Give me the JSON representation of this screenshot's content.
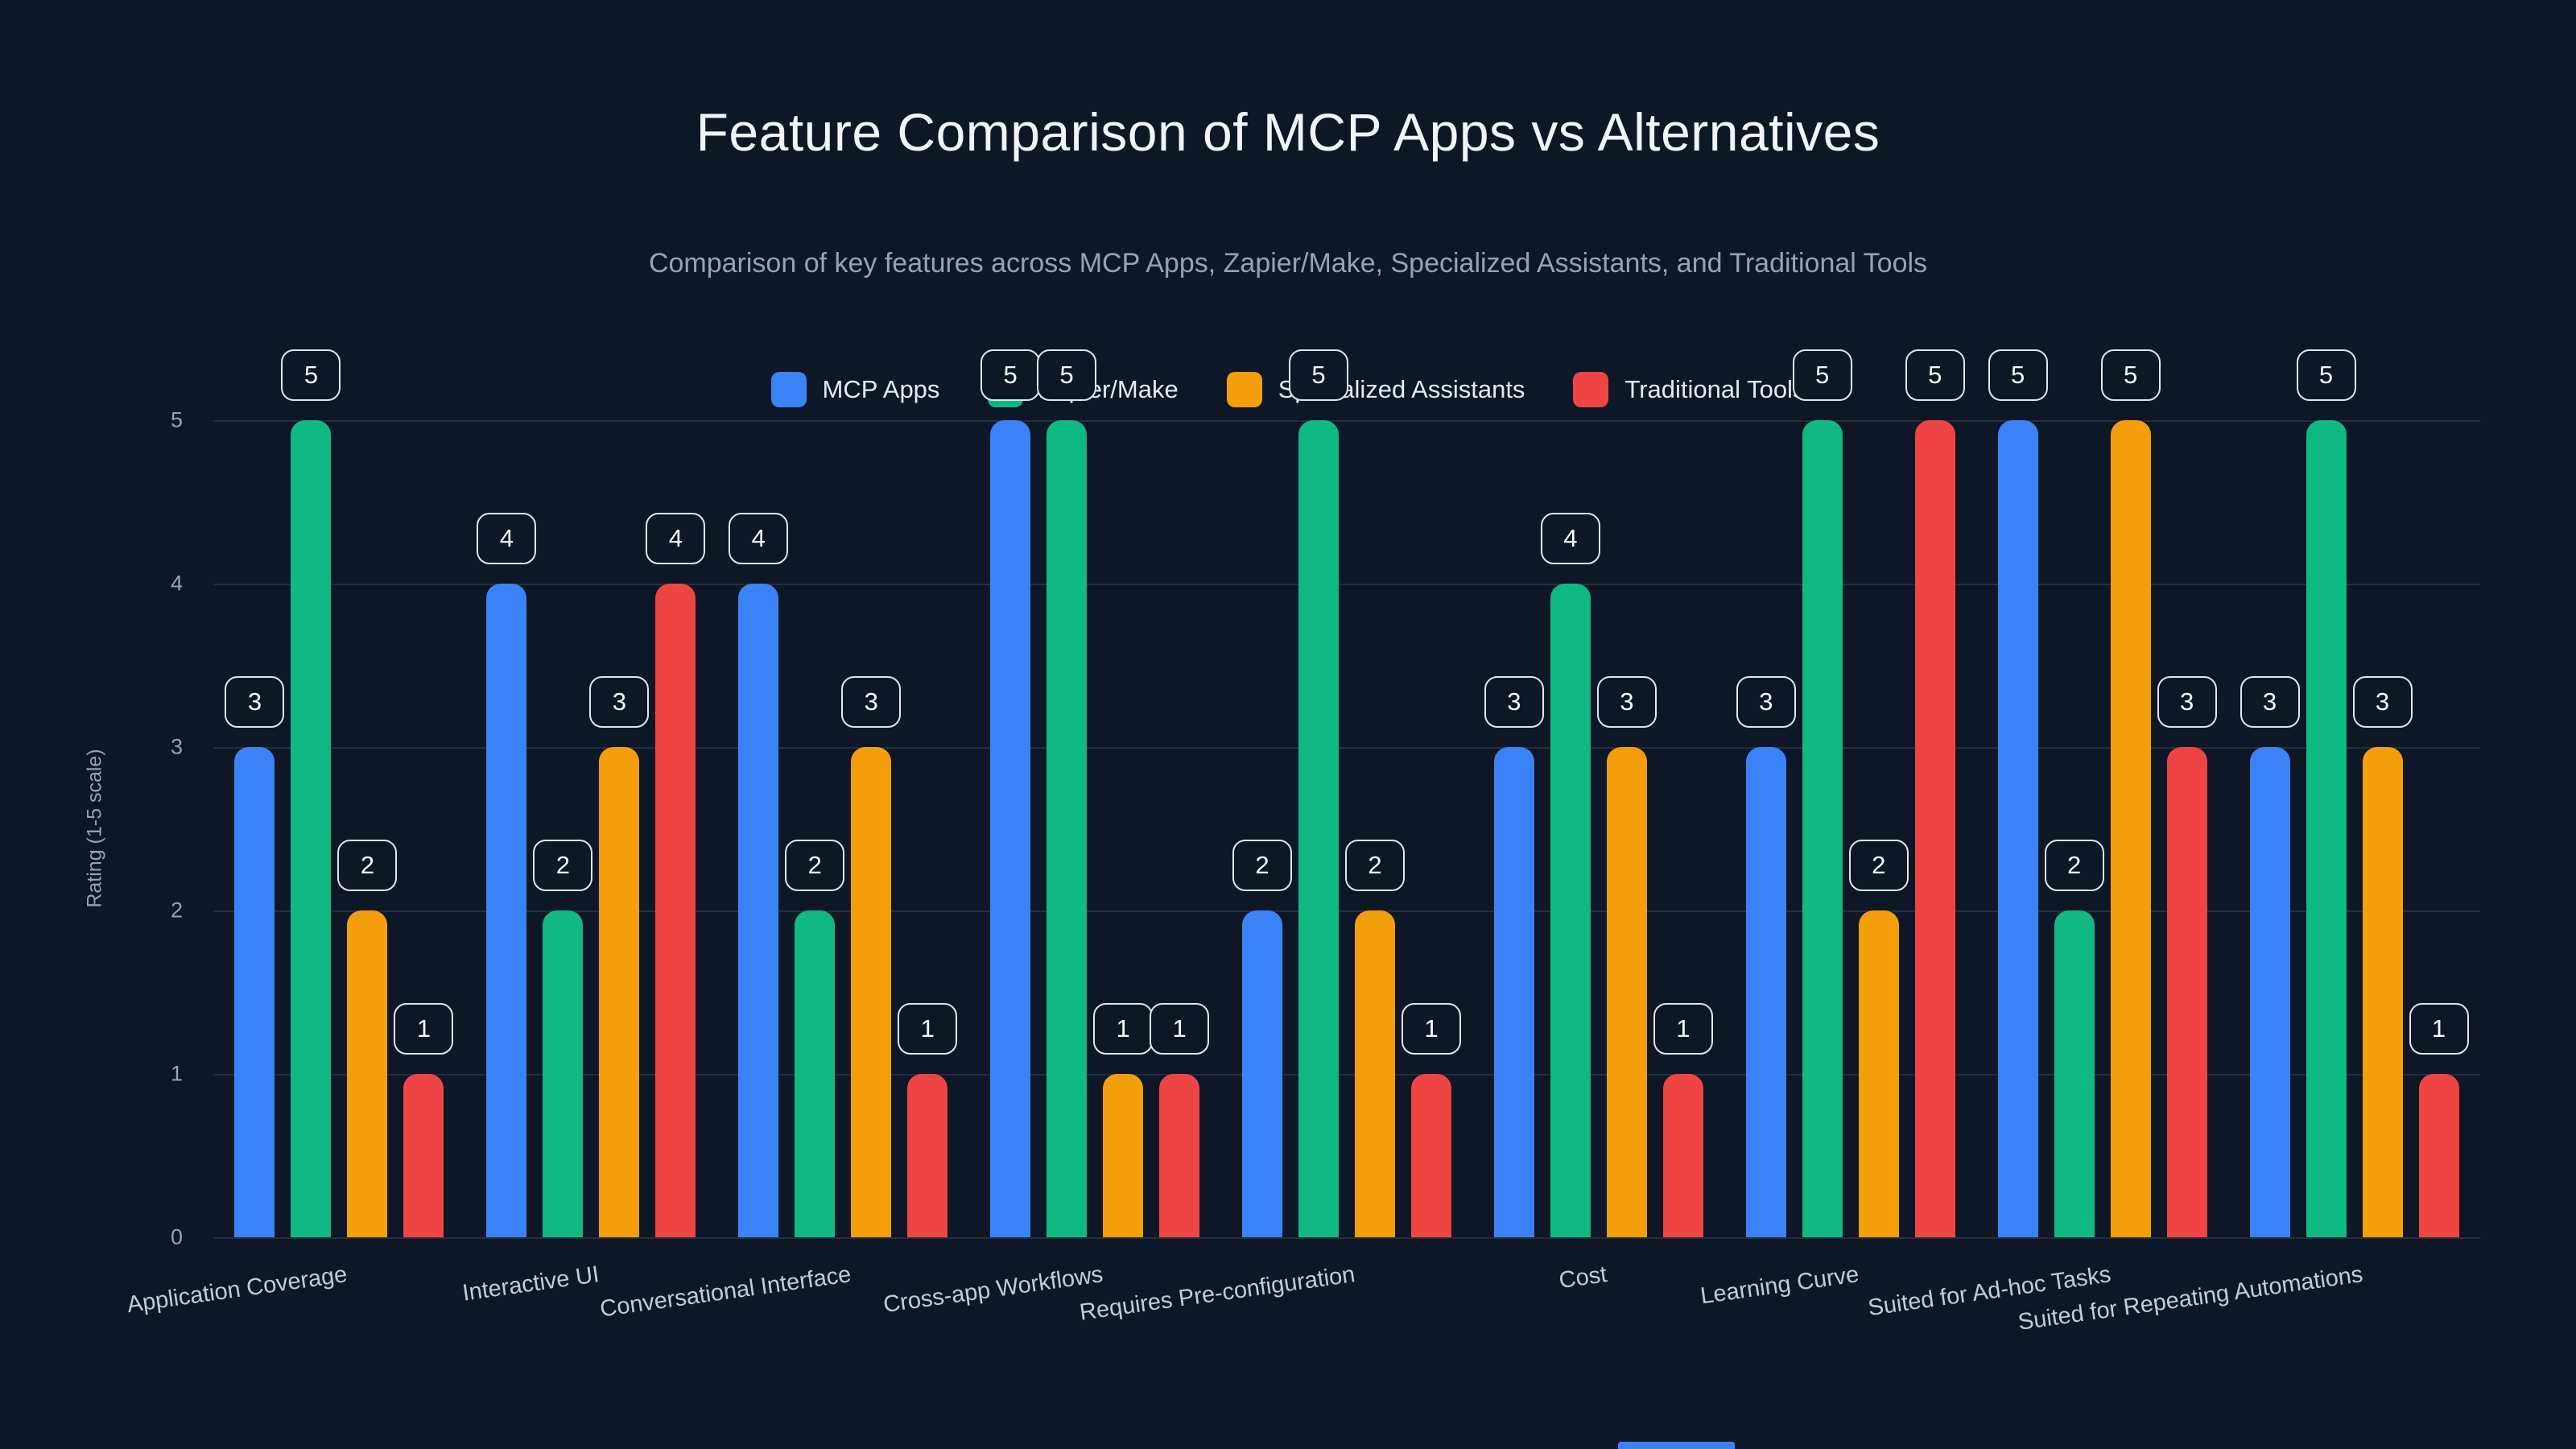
{
  "chart_data": {
    "type": "bar",
    "title": "Feature Comparison of MCP Apps vs Alternatives",
    "subtitle": "Comparison of key features across MCP Apps, Zapier/Make, Specialized Assistants, and Traditional Tools",
    "xlabel": "",
    "ylabel": "Rating (1-5 scale)",
    "ylim": [
      0,
      5
    ],
    "yticks": [
      0,
      1,
      2,
      3,
      4,
      5
    ],
    "grid": true,
    "legend_position": "top",
    "value_labels": true,
    "categories": [
      "Application Coverage",
      "Interactive UI",
      "Conversational Interface",
      "Cross-app Workflows",
      "Requires Pre-configuration",
      "Cost",
      "Learning Curve",
      "Suited for Ad-hoc Tasks",
      "Suited for Repeating Automations"
    ],
    "series": [
      {
        "name": "MCP Apps",
        "color": "#3b82f6",
        "values": [
          3,
          4,
          4,
          5,
          2,
          3,
          3,
          5,
          3
        ]
      },
      {
        "name": "Zapier/Make",
        "color": "#10b981",
        "values": [
          5,
          2,
          2,
          5,
          5,
          4,
          5,
          2,
          5
        ]
      },
      {
        "name": "Specialized Assistants",
        "color": "#f59e0b",
        "values": [
          2,
          3,
          3,
          1,
          2,
          3,
          2,
          5,
          3
        ]
      },
      {
        "name": "Traditional Tools",
        "color": "#ef4444",
        "values": [
          1,
          4,
          1,
          1,
          1,
          1,
          5,
          3,
          1
        ]
      }
    ]
  },
  "page": {
    "background_color": "#0e1726",
    "badge_border_color": "#dfe6ef",
    "accent_strip_color": "#3b82f6"
  }
}
